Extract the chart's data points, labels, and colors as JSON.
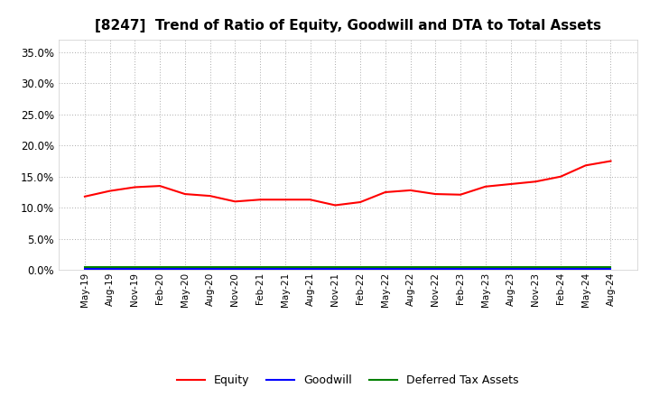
{
  "title": "[8247]  Trend of Ratio of Equity, Goodwill and DTA to Total Assets",
  "title_fontsize": 11,
  "ylim": [
    0.0,
    0.37
  ],
  "yticks": [
    0.0,
    0.05,
    0.1,
    0.15,
    0.2,
    0.25,
    0.3,
    0.35
  ],
  "background_color": "#ffffff",
  "plot_bg_color": "#ffffff",
  "grid_color": "#aaaaaa",
  "x_labels": [
    "May-19",
    "Aug-19",
    "Nov-19",
    "Feb-20",
    "May-20",
    "Aug-20",
    "Nov-20",
    "Feb-21",
    "May-21",
    "Aug-21",
    "Nov-21",
    "Feb-22",
    "May-22",
    "Aug-22",
    "Nov-22",
    "Feb-23",
    "May-23",
    "Aug-23",
    "Nov-23",
    "Feb-24",
    "May-24",
    "Aug-24"
  ],
  "equity": [
    0.118,
    0.127,
    0.133,
    0.135,
    0.122,
    0.119,
    0.11,
    0.113,
    0.113,
    0.113,
    0.104,
    0.109,
    0.125,
    0.128,
    0.122,
    0.121,
    0.134,
    0.138,
    0.142,
    0.15,
    0.168,
    0.175
  ],
  "goodwill": [
    0.002,
    0.002,
    0.002,
    0.002,
    0.002,
    0.002,
    0.002,
    0.002,
    0.002,
    0.002,
    0.002,
    0.002,
    0.002,
    0.002,
    0.002,
    0.002,
    0.002,
    0.002,
    0.002,
    0.002,
    0.002,
    0.002
  ],
  "dta": [
    0.005,
    0.005,
    0.005,
    0.005,
    0.005,
    0.005,
    0.005,
    0.005,
    0.005,
    0.005,
    0.005,
    0.005,
    0.005,
    0.005,
    0.005,
    0.005,
    0.005,
    0.005,
    0.005,
    0.005,
    0.005,
    0.005
  ],
  "equity_color": "#ff0000",
  "goodwill_color": "#0000ff",
  "dta_color": "#008000",
  "line_width": 1.5,
  "legend_labels": [
    "Equity",
    "Goodwill",
    "Deferred Tax Assets"
  ]
}
